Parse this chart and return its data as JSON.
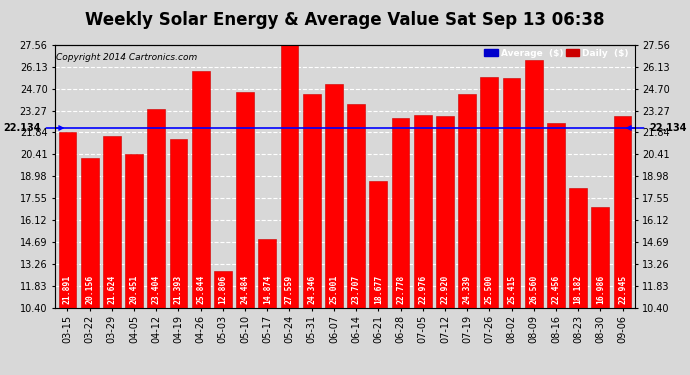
{
  "title": "Weekly Solar Energy & Average Value Sat Sep 13 06:38",
  "copyright": "Copyright 2014 Cartronics.com",
  "categories": [
    "03-15",
    "03-22",
    "03-29",
    "04-05",
    "04-12",
    "04-19",
    "04-26",
    "05-03",
    "05-10",
    "05-17",
    "05-24",
    "05-31",
    "06-07",
    "06-14",
    "06-21",
    "06-28",
    "07-05",
    "07-12",
    "07-19",
    "07-26",
    "08-02",
    "08-09",
    "08-16",
    "08-23",
    "08-30",
    "09-06"
  ],
  "values": [
    21.891,
    20.156,
    21.624,
    20.451,
    23.404,
    21.393,
    25.844,
    12.806,
    24.484,
    14.874,
    27.559,
    24.346,
    25.001,
    23.707,
    18.677,
    22.778,
    22.976,
    22.92,
    24.339,
    25.5,
    25.415,
    26.56,
    22.456,
    18.182,
    16.986,
    22.945
  ],
  "average": 22.134,
  "ylim": [
    10.4,
    27.56
  ],
  "yticks": [
    10.4,
    11.83,
    13.26,
    14.69,
    16.12,
    17.55,
    18.98,
    20.41,
    21.84,
    23.27,
    24.7,
    26.13,
    27.56
  ],
  "bar_color": "#ff0000",
  "bar_edge_color": "#cc0000",
  "avg_line_color": "#0000ff",
  "bg_color": "#d8d8d8",
  "plot_bg_color": "#d8d8d8",
  "grid_color": "#ffffff",
  "text_color": "#000000",
  "avg_label": "22.134",
  "legend_avg_bg": "#0000cc",
  "legend_daily_bg": "#cc0000",
  "title_fontsize": 12,
  "tick_fontsize": 7,
  "value_fontsize": 5.8
}
